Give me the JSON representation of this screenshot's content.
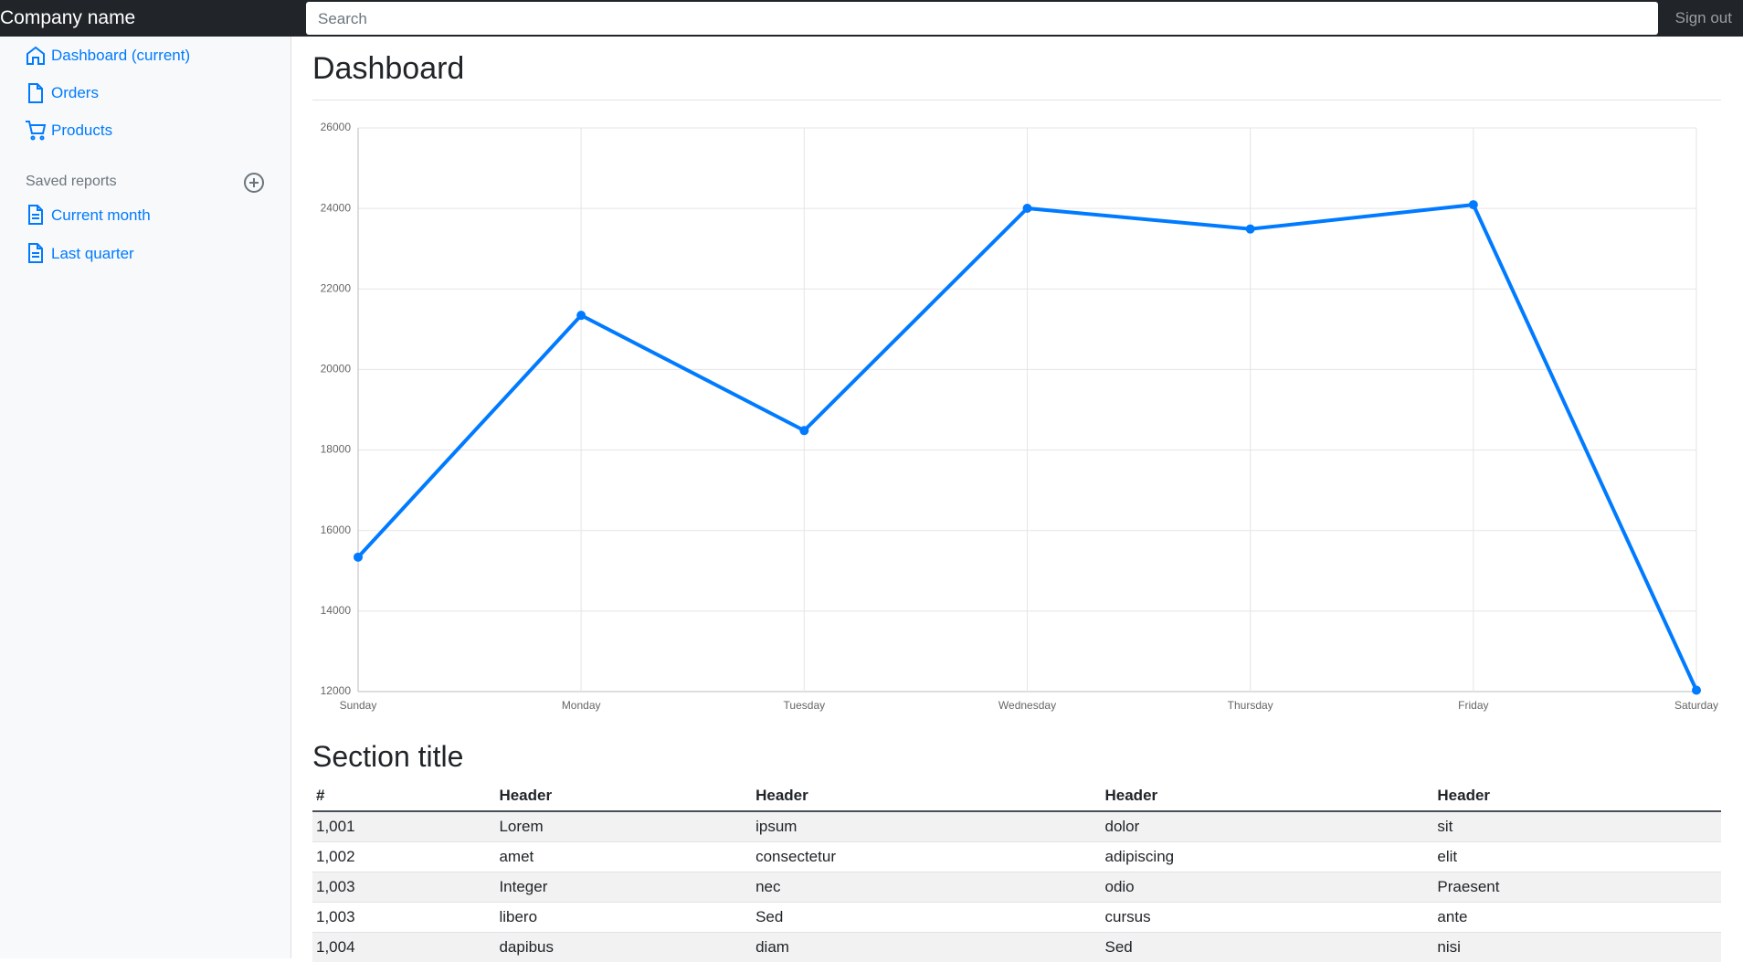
{
  "navbar": {
    "brand": "Company name",
    "search_placeholder": "Search",
    "sign_out": "Sign out"
  },
  "sidebar": {
    "nav": [
      "Dashboard (current)",
      "Orders",
      "Products"
    ],
    "saved_reports_heading": "Saved reports",
    "reports": [
      "Current month",
      "Last quarter"
    ]
  },
  "page_title": "Dashboard",
  "chart_data": {
    "type": "line",
    "categories": [
      "Sunday",
      "Monday",
      "Tuesday",
      "Wednesday",
      "Thursday",
      "Friday",
      "Saturday"
    ],
    "values": [
      15339,
      21345,
      18483,
      24003,
      23489,
      24092,
      12034
    ],
    "color": "#007bff",
    "ylim": [
      12000,
      26000
    ],
    "yticks": [
      12000,
      14000,
      16000,
      18000,
      20000,
      22000,
      24000,
      26000
    ],
    "grid": true
  },
  "section_title": "Section title",
  "table": {
    "headers": [
      "#",
      "Header",
      "Header",
      "Header",
      "Header"
    ],
    "rows": [
      [
        "1,001",
        "Lorem",
        "ipsum",
        "dolor",
        "sit"
      ],
      [
        "1,002",
        "amet",
        "consectetur",
        "adipiscing",
        "elit"
      ],
      [
        "1,003",
        "Integer",
        "nec",
        "odio",
        "Praesent"
      ],
      [
        "1,003",
        "libero",
        "Sed",
        "cursus",
        "ante"
      ],
      [
        "1,004",
        "dapibus",
        "diam",
        "Sed",
        "nisi"
      ]
    ]
  }
}
